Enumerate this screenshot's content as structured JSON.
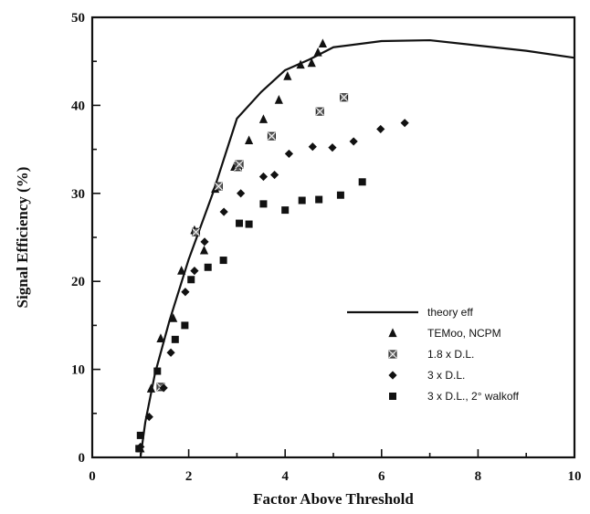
{
  "chart_data": {
    "type": "scatter",
    "title": "",
    "xlabel": "Factor Above Threshold",
    "ylabel": "Signal Efficiency  (%)",
    "xlim": [
      0,
      10
    ],
    "ylim": [
      0,
      50
    ],
    "x_ticks": [
      "0",
      "2",
      "4",
      "6",
      "8",
      "10"
    ],
    "y_ticks": [
      "0",
      "10",
      "20",
      "30",
      "40",
      "50"
    ],
    "grid": false,
    "legend_position": "bottom-right",
    "series": [
      {
        "name": "theory eff",
        "kind": "line",
        "x": [
          1.0,
          1.1,
          1.3,
          1.6,
          2.0,
          2.5,
          3.0,
          3.5,
          4.0,
          4.5,
          5.0,
          6.0,
          7.0,
          8.0,
          9.0,
          10.0
        ],
        "y": [
          0.0,
          4.0,
          9.5,
          15.5,
          22.5,
          30.0,
          38.5,
          41.5,
          44.0,
          45.2,
          46.6,
          47.3,
          47.4,
          46.8,
          46.2,
          45.4
        ]
      },
      {
        "name": "TEMoo, NCPM",
        "kind": "marker",
        "marker": "triangle",
        "x": [
          1.0,
          1.22,
          1.42,
          1.68,
          1.85,
          2.12,
          2.32,
          2.55,
          2.95,
          3.25,
          3.55,
          3.87,
          4.05,
          4.32,
          4.55,
          4.68,
          4.78
        ],
        "y": [
          1.0,
          7.8,
          13.5,
          15.8,
          21.2,
          25.8,
          23.5,
          30.5,
          33.0,
          36.0,
          38.4,
          40.6,
          43.3,
          44.6,
          44.8,
          46.0,
          47.0
        ]
      },
      {
        "name": "1.8 x D.L.",
        "kind": "marker",
        "marker": "square-x",
        "x": [
          1.42,
          2.15,
          2.62,
          3.02,
          3.05,
          3.72,
          4.72,
          5.22
        ],
        "y": [
          8.0,
          25.6,
          30.8,
          33.0,
          33.3,
          36.5,
          39.3,
          40.9
        ]
      },
      {
        "name": "3 x D.L.",
        "kind": "marker",
        "marker": "diamond",
        "x": [
          1.0,
          1.18,
          1.48,
          1.63,
          1.93,
          2.12,
          2.33,
          2.73,
          3.08,
          3.55,
          3.78,
          4.08,
          4.57,
          4.98,
          5.42,
          5.98,
          6.48
        ],
        "y": [
          1.2,
          4.6,
          7.9,
          11.9,
          18.8,
          21.2,
          24.5,
          27.9,
          30.0,
          31.9,
          32.1,
          34.5,
          35.3,
          35.2,
          35.9,
          37.3,
          38.0
        ]
      },
      {
        "name": "3 x D.L., 2° walkoff",
        "kind": "marker",
        "marker": "square",
        "x": [
          0.97,
          1.0,
          1.35,
          1.72,
          1.92,
          2.05,
          2.4,
          2.72,
          3.05,
          3.25,
          3.55,
          4.0,
          4.35,
          4.7,
          5.15,
          5.6
        ],
        "y": [
          1.0,
          2.5,
          9.8,
          13.4,
          15.0,
          20.2,
          21.6,
          22.4,
          26.6,
          26.5,
          28.8,
          28.1,
          29.2,
          29.3,
          29.8,
          31.3
        ]
      }
    ]
  }
}
